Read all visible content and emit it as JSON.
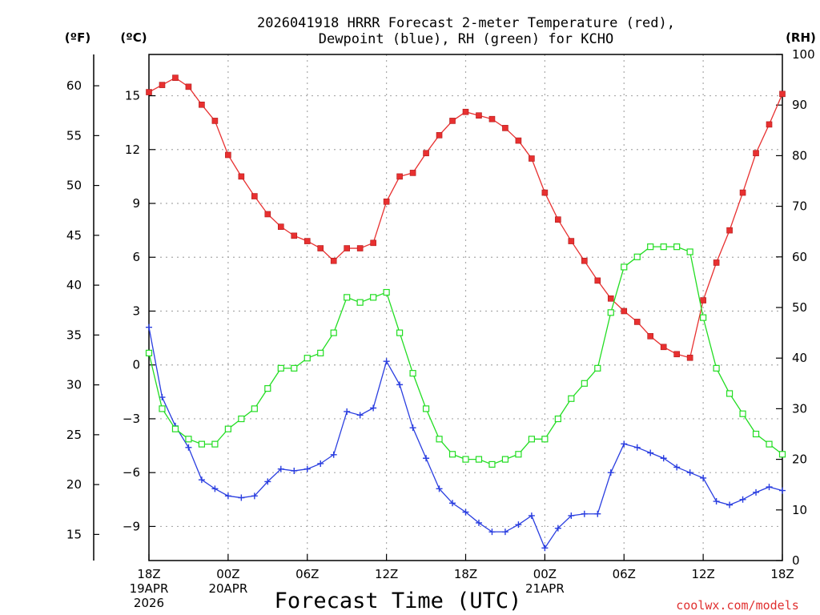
{
  "chart_data": {
    "type": "line",
    "title_line1": "2026041918 HRRR Forecast 2-meter Temperature (red),",
    "title_line2": "Dewpoint (blue), RH (green) for KCHO",
    "xlabel": "Forecast Time (UTC)",
    "credit": "coolwx.com/models",
    "unit_labels": {
      "fahrenheit": "(ºF)",
      "celsius": "(ºC)",
      "rh": "(RH)"
    },
    "x_range": [
      0,
      48
    ],
    "celsius_range": [
      -10.9,
      17.3
    ],
    "rh_range": [
      0,
      100
    ],
    "celsius_ticks": [
      "15",
      "12",
      "9",
      "6",
      "3",
      "0",
      "−3",
      "−6",
      "−9"
    ],
    "celsius_tick_values": [
      15,
      12,
      9,
      6,
      3,
      0,
      -3,
      -6,
      -9
    ],
    "fahrenheit_ticks": [
      "60",
      "55",
      "50",
      "45",
      "40",
      "35",
      "30",
      "25",
      "20",
      "15"
    ],
    "fahrenheit_tick_values": [
      60,
      55,
      50,
      45,
      40,
      35,
      30,
      25,
      20,
      15
    ],
    "rh_ticks": [
      "100",
      "90",
      "80",
      "70",
      "60",
      "50",
      "40",
      "30",
      "20",
      "10",
      "0"
    ],
    "rh_tick_values": [
      100,
      90,
      80,
      70,
      60,
      50,
      40,
      30,
      20,
      10,
      0
    ],
    "x_ticks": [
      {
        "hour": 0,
        "lines": [
          "18Z",
          "19APR",
          "2026"
        ]
      },
      {
        "hour": 6,
        "lines": [
          "00Z",
          "20APR"
        ]
      },
      {
        "hour": 12,
        "lines": [
          "06Z"
        ]
      },
      {
        "hour": 18,
        "lines": [
          "12Z"
        ]
      },
      {
        "hour": 24,
        "lines": [
          "18Z"
        ]
      },
      {
        "hour": 30,
        "lines": [
          "00Z",
          "21APR"
        ]
      },
      {
        "hour": 36,
        "lines": [
          "06Z"
        ]
      },
      {
        "hour": 42,
        "lines": [
          "12Z"
        ]
      },
      {
        "hour": 48,
        "lines": [
          "18Z"
        ]
      }
    ],
    "series": [
      {
        "name": "2-meter Temperature",
        "unit": "C",
        "color": "#e83030",
        "marker": "filled-square",
        "values": [
          15.2,
          15.6,
          16.0,
          15.5,
          14.5,
          13.6,
          11.7,
          10.5,
          9.4,
          8.4,
          7.7,
          7.2,
          6.9,
          6.5,
          5.8,
          6.5,
          6.5,
          6.8,
          9.1,
          10.5,
          10.7,
          11.8,
          12.8,
          13.6,
          14.1,
          13.9,
          13.7,
          13.2,
          12.5,
          11.5,
          9.6,
          8.1,
          6.9,
          5.8,
          4.7,
          3.7,
          3.0,
          2.4,
          1.6,
          1.0,
          0.6,
          0.4,
          3.6,
          5.7,
          7.5,
          9.6,
          11.8,
          13.4,
          15.1
        ]
      },
      {
        "name": "Dewpoint",
        "unit": "C",
        "color": "#2a3ee0",
        "marker": "plus",
        "values": [
          2.1,
          -1.8,
          -3.4,
          -4.6,
          -6.4,
          -6.9,
          -7.3,
          -7.4,
          -7.3,
          -6.5,
          -5.8,
          -5.9,
          -5.8,
          -5.5,
          -5.0,
          -2.6,
          -2.8,
          -2.4,
          0.2,
          -1.1,
          -3.5,
          -5.2,
          -6.9,
          -7.7,
          -8.2,
          -8.8,
          -9.3,
          -9.3,
          -8.9,
          -8.4,
          -10.2,
          -9.1,
          -8.4,
          -8.3,
          -8.3,
          -6.0,
          -4.4,
          -4.6,
          -4.9,
          -5.2,
          -5.7,
          -6.0,
          -6.3,
          -7.6,
          -7.8,
          -7.5,
          -7.1,
          -6.8,
          -7.0
        ]
      },
      {
        "name": "RH",
        "unit": "%",
        "color": "#22dd22",
        "marker": "open-square",
        "values": [
          41,
          30,
          26,
          24,
          23,
          23,
          26,
          28,
          30,
          34,
          38,
          38,
          40,
          41,
          45,
          52,
          51,
          52,
          53,
          45,
          37,
          30,
          24,
          21,
          20,
          20,
          19,
          20,
          21,
          24,
          24,
          28,
          32,
          35,
          38,
          49,
          58,
          60,
          62,
          62,
          62,
          61,
          48,
          38,
          33,
          29,
          25,
          23,
          21
        ]
      }
    ]
  }
}
